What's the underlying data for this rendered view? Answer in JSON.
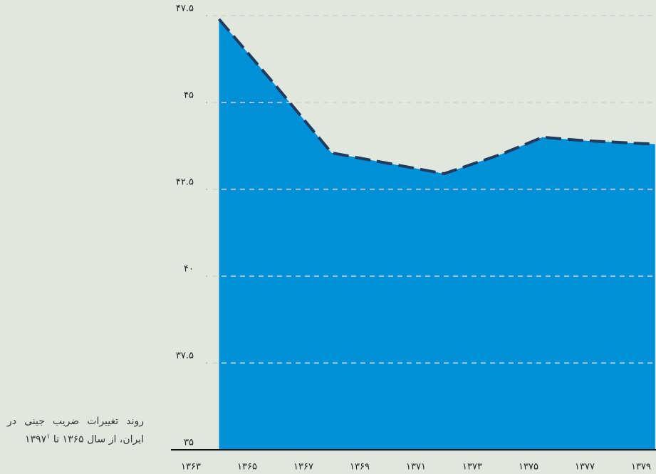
{
  "chart_data": {
    "type": "area",
    "caption": "روند تغییرات ضریب جینی در ایران، از سال ۱۳۶۵ تا ۱۳۹۷",
    "caption_note": "۱",
    "x": [
      1364,
      1366,
      1368,
      1370,
      1372,
      1374,
      1375.5,
      1377,
      1379.5
    ],
    "series": [
      {
        "color": "#0090d8",
        "line_color": "#1f3b5e",
        "values": [
          47.4,
          45.5,
          43.55,
          43.25,
          42.95,
          43.5,
          44.0,
          43.9,
          43.8
        ]
      }
    ],
    "xlim": [
      1363,
      1380
    ],
    "xticks": [
      {
        "value": 1363,
        "label": "۱۳۶۳"
      },
      {
        "value": 1365,
        "label": "۱۳۶۵"
      },
      {
        "value": 1367,
        "label": "۱۳۶۷"
      },
      {
        "value": 1369,
        "label": "۱۳۶۹"
      },
      {
        "value": 1371,
        "label": "۱۳۷۱"
      },
      {
        "value": 1373,
        "label": "۱۳۷۳"
      },
      {
        "value": 1375,
        "label": "۱۳۷۵"
      },
      {
        "value": 1377,
        "label": "۱۳۷۷"
      },
      {
        "value": 1379,
        "label": "۱۳۷۹"
      }
    ],
    "ylim": [
      35,
      47.5
    ],
    "yticks": [
      {
        "value": 35,
        "label": "۳۵"
      },
      {
        "value": 37.5,
        "label": "۳۷.۵"
      },
      {
        "value": 40,
        "label": "۴۰"
      },
      {
        "value": 42.5,
        "label": "۴۲.۵"
      },
      {
        "value": 45,
        "label": "۴۵"
      },
      {
        "value": 47.5,
        "label": "۴۷.۵"
      }
    ],
    "grid": true
  }
}
